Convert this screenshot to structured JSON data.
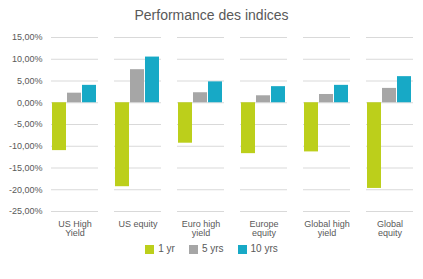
{
  "chart_data": {
    "type": "bar",
    "title": "Performance des indices",
    "categories": [
      "US High Yield",
      "US equity",
      "Euro high yield",
      "Europe equity",
      "Global high yield",
      "Global equity"
    ],
    "series": [
      {
        "name": "1 yr",
        "color": "#bccf1b",
        "values": [
          -11.0,
          -19.3,
          -9.3,
          -11.7,
          -11.3,
          -19.7
        ]
      },
      {
        "name": "5 yrs",
        "color": "#a6a6a6",
        "values": [
          2.2,
          7.6,
          2.3,
          1.6,
          1.9,
          3.3
        ]
      },
      {
        "name": "10 yrs",
        "color": "#17a9c6",
        "values": [
          4.0,
          10.5,
          4.8,
          3.7,
          4.0,
          6.0
        ]
      }
    ],
    "ylim": [
      -25,
      15
    ],
    "yticks": [
      {
        "value": -25,
        "label": "-25,00%"
      },
      {
        "value": -20,
        "label": "-20,00%"
      },
      {
        "value": -15,
        "label": "-15,00%"
      },
      {
        "value": -10,
        "label": "-10,00%"
      },
      {
        "value": -5,
        "label": "-5,00%"
      },
      {
        "value": 0,
        "label": "0,00%"
      },
      {
        "value": 5,
        "label": "5,00%"
      },
      {
        "value": 10,
        "label": "10,00%"
      },
      {
        "value": 15,
        "label": "15,00%"
      }
    ],
    "grid": true,
    "legend": "bottom"
  }
}
